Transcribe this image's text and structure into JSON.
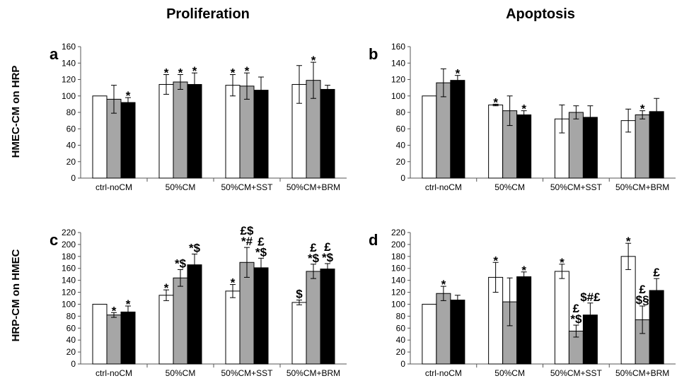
{
  "titles": {
    "proliferation": "Proliferation",
    "apoptosis": "Apoptosis"
  },
  "row_labels": {
    "top": "HMEC-CM on HRP",
    "bottom": "HRP-CM on HMEC"
  },
  "colors": {
    "series1": "#ffffff",
    "series2": "#a6a6a6",
    "series3": "#000000"
  },
  "chart_data": [
    {
      "type": "bar",
      "panel": "a",
      "categories": [
        "ctrl-noCM",
        "50%CM",
        "50%CM+SST",
        "50%CM+BRM"
      ],
      "ylim": [
        0,
        160
      ],
      "yticks": [
        0,
        20,
        40,
        60,
        80,
        100,
        120,
        140,
        160
      ],
      "series": [
        {
          "values": [
            100,
            114,
            113,
            114
          ],
          "errors": [
            0,
            12,
            13,
            23
          ],
          "labels": [
            "",
            "*",
            "*",
            ""
          ]
        },
        {
          "values": [
            96,
            117,
            112,
            119
          ],
          "errors": [
            17,
            9,
            16,
            22
          ],
          "labels": [
            "",
            "*",
            "*",
            "*"
          ]
        },
        {
          "values": [
            92,
            114,
            107,
            108
          ],
          "errors": [
            6,
            14,
            16,
            5
          ],
          "labels": [
            "*",
            "*",
            "",
            ""
          ]
        }
      ]
    },
    {
      "type": "bar",
      "panel": "b",
      "categories": [
        "ctrl-noCM",
        "50%CM",
        "50%CM+SST",
        "50%CM+BRM"
      ],
      "ylim": [
        0,
        160
      ],
      "yticks": [
        0,
        20,
        40,
        60,
        80,
        100,
        120,
        140,
        160
      ],
      "series": [
        {
          "values": [
            100,
            89,
            72,
            70
          ],
          "errors": [
            0,
            1,
            17,
            14
          ],
          "labels": [
            "",
            "*",
            "",
            ""
          ]
        },
        {
          "values": [
            116,
            82,
            80,
            77
          ],
          "errors": [
            17,
            18,
            8,
            5
          ],
          "labels": [
            "",
            "",
            "",
            "*"
          ]
        },
        {
          "values": [
            119,
            77,
            74,
            81
          ],
          "errors": [
            6,
            5,
            14,
            16
          ],
          "labels": [
            "*",
            "*",
            "",
            ""
          ]
        }
      ]
    },
    {
      "type": "bar",
      "panel": "c",
      "categories": [
        "ctrl-noCM",
        "50%CM",
        "50%CM+SST",
        "50%CM+BRM"
      ],
      "ylim": [
        0,
        220
      ],
      "yticks": [
        0,
        20,
        40,
        60,
        80,
        100,
        120,
        140,
        160,
        180,
        200,
        220
      ],
      "series": [
        {
          "values": [
            100,
            115,
            122,
            103
          ],
          "errors": [
            0,
            9,
            11,
            4
          ],
          "labels": [
            [
              "",
              ""
            ],
            [
              "",
              "*"
            ],
            [
              "",
              "*"
            ],
            [
              "",
              "$"
            ]
          ]
        },
        {
          "values": [
            82,
            144,
            170,
            155
          ],
          "errors": [
            4,
            14,
            25,
            12
          ],
          "labels": [
            [
              "",
              "*"
            ],
            [
              "",
              "*$"
            ],
            [
              "£$",
              "*#"
            ],
            [
              "£",
              "*$"
            ]
          ]
        },
        {
          "values": [
            87,
            166,
            161,
            159
          ],
          "errors": [
            10,
            18,
            16,
            9
          ],
          "labels": [
            [
              "",
              "*"
            ],
            [
              "",
              "*$"
            ],
            [
              "£",
              "*$"
            ],
            [
              "£",
              "*$"
            ]
          ]
        }
      ]
    },
    {
      "type": "bar",
      "panel": "d",
      "categories": [
        "ctrl-noCM",
        "50%CM",
        "50%CM+SST",
        "50%CM+BRM"
      ],
      "ylim": [
        0,
        220
      ],
      "yticks": [
        0,
        20,
        40,
        60,
        80,
        100,
        120,
        140,
        160,
        180,
        200,
        220
      ],
      "series": [
        {
          "values": [
            100,
            145,
            155,
            180
          ],
          "errors": [
            0,
            25,
            12,
            22
          ],
          "labels": [
            [
              "",
              ""
            ],
            [
              "",
              "*"
            ],
            [
              "",
              "*"
            ],
            [
              "",
              "*"
            ]
          ]
        },
        {
          "values": [
            118,
            104,
            55,
            74
          ],
          "errors": [
            12,
            40,
            10,
            23
          ],
          "labels": [
            [
              "",
              "*"
            ],
            [
              "",
              ""
            ],
            [
              "£",
              "*$"
            ],
            [
              "£",
              "$§"
            ]
          ]
        },
        {
          "values": [
            107,
            146,
            82,
            123
          ],
          "errors": [
            8,
            8,
            20,
            20
          ],
          "labels": [
            [
              "",
              ""
            ],
            [
              "",
              "*"
            ],
            [
              "",
              "$#£"
            ],
            [
              "",
              "£"
            ]
          ]
        }
      ]
    }
  ]
}
